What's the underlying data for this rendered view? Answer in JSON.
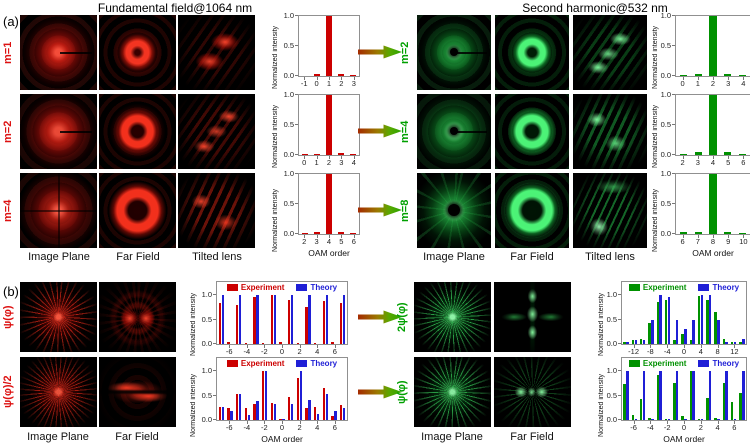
{
  "colors": {
    "experiment_red": "#cc0000",
    "experiment_green": "#009100",
    "theory_blue": "#1f1fd6",
    "label_red": "#dd1111",
    "label_green": "#00a000"
  },
  "panel_a": {
    "label": "(a)",
    "left": {
      "header": "Fundamental field@1064 nm",
      "rows": [
        {
          "label": "m=1"
        },
        {
          "label": "m=2"
        },
        {
          "label": "m=4"
        }
      ],
      "column_labels": [
        "Image Plane",
        "Far Field",
        "Tilted lens"
      ]
    },
    "right": {
      "header": "Second harmonic@532 nm",
      "rows": [
        {
          "label": "m=2"
        },
        {
          "label": "m=4"
        },
        {
          "label": "m=8"
        }
      ],
      "column_labels": [
        "Image Plane",
        "Far Field",
        "Tilted lens"
      ]
    }
  },
  "panel_b": {
    "label": "(b)",
    "left": {
      "rows": [
        {
          "label": "ψ(φ)"
        },
        {
          "label": "ψ(φ)/2"
        }
      ],
      "column_labels": [
        "Image Plane",
        "Far Field"
      ]
    },
    "right": {
      "rows": [
        {
          "label": "2ψ(φ)"
        },
        {
          "label": "ψ(φ)"
        }
      ],
      "column_labels": [
        "Image Plane",
        "Far Field"
      ]
    }
  },
  "chart_data": [
    {
      "id": "a-left-m1",
      "type": "bar",
      "ylabel": "Normalized intensity",
      "xlabel": "",
      "x": [
        -1,
        0,
        1,
        2,
        3
      ],
      "xticks": [
        -1,
        0,
        1,
        2,
        3
      ],
      "values": [
        0.0,
        0.03,
        1.0,
        0.04,
        0.02
      ],
      "color": "#cc0000",
      "ylim": [
        0,
        1.0
      ],
      "yticks": [
        0.0,
        0.5,
        1.0
      ]
    },
    {
      "id": "a-left-m2",
      "type": "bar",
      "ylabel": "Normalized intensity",
      "xlabel": "",
      "x": [
        0,
        1,
        2,
        3,
        4
      ],
      "xticks": [
        0,
        1,
        2,
        3,
        4
      ],
      "values": [
        0.02,
        0.02,
        1.0,
        0.03,
        0.02
      ],
      "color": "#cc0000",
      "ylim": [
        0,
        1.0
      ],
      "yticks": [
        0.0,
        0.5,
        1.0
      ]
    },
    {
      "id": "a-left-m4",
      "type": "bar",
      "ylabel": "Normalized intensity",
      "xlabel": "OAM order",
      "x": [
        2,
        3,
        4,
        5,
        6
      ],
      "xticks": [
        2,
        3,
        4,
        5,
        6
      ],
      "values": [
        0.01,
        0.03,
        1.0,
        0.03,
        0.01
      ],
      "color": "#cc0000",
      "ylim": [
        0,
        1.0
      ],
      "yticks": [
        0.0,
        0.5,
        1.0
      ]
    },
    {
      "id": "a-right-m2",
      "type": "bar",
      "ylabel": "Normalized intensity",
      "xlabel": "",
      "x": [
        0,
        1,
        2,
        3,
        4
      ],
      "xticks": [
        0,
        1,
        2,
        3,
        4
      ],
      "values": [
        0.01,
        0.04,
        1.0,
        0.04,
        0.01
      ],
      "color": "#009100",
      "ylim": [
        0,
        1.0
      ],
      "yticks": [
        0.0,
        0.5,
        1.0
      ]
    },
    {
      "id": "a-right-m4",
      "type": "bar",
      "ylabel": "Normalized intensity",
      "xlabel": "",
      "x": [
        2,
        3,
        4,
        5,
        6
      ],
      "xticks": [
        2,
        3,
        4,
        5,
        6
      ],
      "values": [
        0.01,
        0.05,
        1.0,
        0.05,
        0.01
      ],
      "color": "#009100",
      "ylim": [
        0,
        1.0
      ],
      "yticks": [
        0.0,
        0.5,
        1.0
      ]
    },
    {
      "id": "a-right-m8",
      "type": "bar",
      "ylabel": "Normalized intensity",
      "xlabel": "OAM order",
      "x": [
        6,
        7,
        8,
        9,
        10
      ],
      "xticks": [
        6,
        7,
        8,
        9,
        10
      ],
      "values": [
        0.03,
        0.03,
        1.0,
        0.03,
        0.02
      ],
      "color": "#009100",
      "ylim": [
        0,
        1.0
      ],
      "yticks": [
        0.0,
        0.5,
        1.0
      ]
    },
    {
      "id": "b-left-psi",
      "type": "bar",
      "ylabel": "Normalized intensity",
      "xlabel": "",
      "x": [
        -7,
        -6,
        -5,
        -4,
        -3,
        -2,
        -1,
        0,
        1,
        2,
        3,
        4,
        5,
        6,
        7
      ],
      "xticks": [
        -6,
        -4,
        -2,
        0,
        2,
        4,
        6
      ],
      "ylim": [
        0,
        1.0
      ],
      "yticks": [
        0.0,
        0.5,
        1.0
      ],
      "series": [
        {
          "name": "Experiment",
          "color": "#cc0000",
          "values": [
            0.84,
            0.05,
            0.8,
            0.03,
            0.95,
            0.03,
            1.0,
            0.04,
            0.9,
            0.02,
            0.76,
            0.03,
            0.88,
            0.05,
            0.83
          ]
        },
        {
          "name": "Theory",
          "color": "#1f1fd6",
          "values": [
            1.0,
            0,
            1.0,
            0,
            1.0,
            0,
            1.0,
            0,
            1.0,
            0,
            1.0,
            0,
            1.0,
            0,
            1.0
          ]
        }
      ]
    },
    {
      "id": "b-left-psi-half",
      "type": "bar",
      "ylabel": "Normalized intensity",
      "xlabel": "OAM order",
      "x": [
        -7,
        -6,
        -5,
        -4,
        -3,
        -2,
        -1,
        0,
        1,
        2,
        3,
        4,
        5,
        6,
        7
      ],
      "xticks": [
        -6,
        -4,
        -2,
        0,
        2,
        4,
        6
      ],
      "ylim": [
        0,
        1.0
      ],
      "yticks": [
        0.0,
        0.5,
        1.0
      ],
      "series": [
        {
          "name": "Experiment",
          "color": "#cc0000",
          "values": [
            0.27,
            0.25,
            0.54,
            0.25,
            0.33,
            1.0,
            0.35,
            0.03,
            0.46,
            0.85,
            0.25,
            0.27,
            0.65,
            0.09,
            0.31
          ]
        },
        {
          "name": "Theory",
          "color": "#1f1fd6",
          "values": [
            0.26,
            0.18,
            0.54,
            0.1,
            0.38,
            1.0,
            0.33,
            0.01,
            0.32,
            1.0,
            0.4,
            0.12,
            0.54,
            0.18,
            0.25
          ]
        }
      ]
    },
    {
      "id": "b-right-2psi",
      "type": "bar",
      "ylabel": "Normalized intensity",
      "xlabel": "",
      "x": [
        -14,
        -12,
        -10,
        -8,
        -6,
        -4,
        -2,
        0,
        2,
        4,
        6,
        8,
        10,
        12,
        14
      ],
      "xticks": [
        -12,
        -8,
        -4,
        0,
        4,
        8,
        12
      ],
      "ylim": [
        0,
        1.0
      ],
      "yticks": [
        0.0,
        0.5,
        1.0
      ],
      "series": [
        {
          "name": "Experiment",
          "color": "#009100",
          "values": [
            0.05,
            0.08,
            0.1,
            0.42,
            0.85,
            0.9,
            0.08,
            0.2,
            0.08,
            0.97,
            0.9,
            0.65,
            0.1,
            0.05,
            0.05
          ]
        },
        {
          "name": "Theory",
          "color": "#1f1fd6",
          "values": [
            0.05,
            0.08,
            0.08,
            0.5,
            1.0,
            0.95,
            0.48,
            0.3,
            0.48,
            1.0,
            1.0,
            0.48,
            0.05,
            0.05,
            0.1
          ]
        }
      ]
    },
    {
      "id": "b-right-psi",
      "type": "bar",
      "ylabel": "Normalized intensity",
      "xlabel": "OAM order",
      "x": [
        -7,
        -6,
        -5,
        -4,
        -3,
        -2,
        -1,
        0,
        1,
        2,
        3,
        4,
        5,
        6,
        7
      ],
      "xticks": [
        -6,
        -4,
        -2,
        0,
        2,
        4,
        6
      ],
      "ylim": [
        0,
        1.0
      ],
      "yticks": [
        0.0,
        0.5,
        1.0
      ],
      "series": [
        {
          "name": "Experiment",
          "color": "#009100",
          "values": [
            0.73,
            0.1,
            0.42,
            0.05,
            0.92,
            0.03,
            0.75,
            0.08,
            1.0,
            0.03,
            0.45,
            0.05,
            0.75,
            0.37,
            0.55
          ]
        },
        {
          "name": "Theory",
          "color": "#1f1fd6",
          "values": [
            1.0,
            0.02,
            1.0,
            0.02,
            1.0,
            0.02,
            1.0,
            0.02,
            1.0,
            0.02,
            1.0,
            0.02,
            1.0,
            0.02,
            1.0
          ]
        }
      ]
    }
  ]
}
